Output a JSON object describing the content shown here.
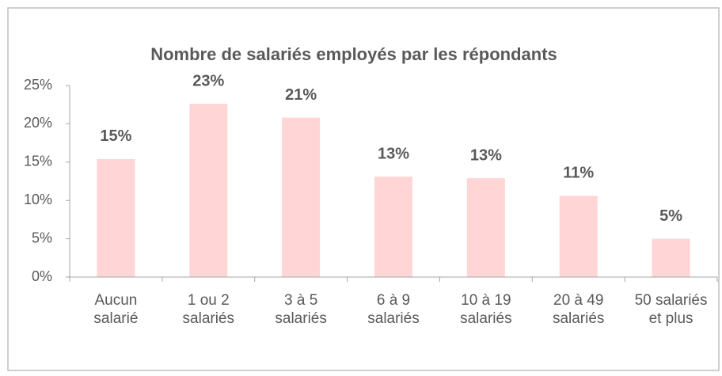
{
  "chart_data": {
    "type": "bar",
    "title": "Nombre de salariés employés par les répondants",
    "categories": [
      "Aucun salarié",
      "1 ou 2 salariés",
      "3 à 5 salariés",
      "6 à 9 salariés",
      "10 à 19 salariés",
      "20 à 49 salariés",
      "50 salariés et plus"
    ],
    "values": [
      15.4,
      22.6,
      20.8,
      13.1,
      12.9,
      10.6,
      5.0
    ],
    "value_labels": [
      "15%",
      "23%",
      "21%",
      "13%",
      "13%",
      "11%",
      "5%"
    ],
    "color": "#ffd5d5",
    "ylim": [
      0,
      25
    ],
    "yticks": [
      {
        "value": 0,
        "label": "0%"
      },
      {
        "value": 5,
        "label": "5%"
      },
      {
        "value": 10,
        "label": "10%"
      },
      {
        "value": 15,
        "label": "15%"
      },
      {
        "value": 20,
        "label": "20%"
      },
      {
        "value": 25,
        "label": "25%"
      }
    ],
    "grid": false
  }
}
